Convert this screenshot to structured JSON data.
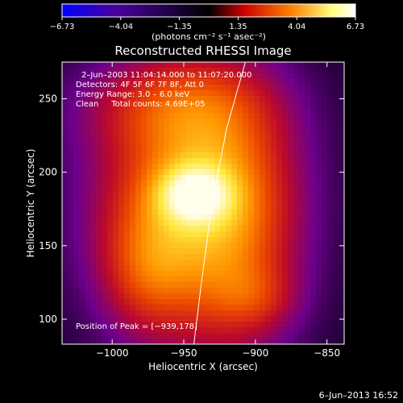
{
  "chart_data": {
    "type": "heatmap",
    "title": "Reconstructed RHESSI Image",
    "xlabel": "Heliocentric X (arcsec)",
    "ylabel": "Heliocentric Y (arcsec)",
    "xlim": [
      -1035,
      -838
    ],
    "ylim": [
      83,
      275
    ],
    "x_ticks": [
      {
        "value": -1000,
        "label": "−1000"
      },
      {
        "value": -950,
        "label": "−950"
      },
      {
        "value": -900,
        "label": "−900"
      },
      {
        "value": -850,
        "label": "−850"
      }
    ],
    "y_ticks": [
      {
        "value": 100,
        "label": "100"
      },
      {
        "value": 150,
        "label": "150"
      },
      {
        "value": 200,
        "label": "200"
      },
      {
        "value": 250,
        "label": "250"
      }
    ],
    "colorbar": {
      "range": [
        -6.73,
        6.73
      ],
      "ticks": [
        {
          "value": -6.73,
          "label": "−6.73"
        },
        {
          "value": -4.04,
          "label": "−4.04"
        },
        {
          "value": -1.35,
          "label": "−1.35"
        },
        {
          "value": 1.35,
          "label": "1.35"
        },
        {
          "value": 4.04,
          "label": "4.04"
        },
        {
          "value": 6.73,
          "label": "6.73"
        }
      ],
      "unit_label": "(photons cm⁻² s⁻¹ asec⁻²)",
      "colors": [
        "#0000ff",
        "#4a00a0",
        "#000000",
        "#cc0000",
        "#ff8000",
        "#ffff80",
        "#ffffff"
      ]
    },
    "annotations": [
      "2–Jun–2003 11:04:14.000 to 11:07:20.000",
      "Detectors: 4F 5F 6F 7F 8F, Att 0",
      "Energy Range: 3.0 – 6.0 keV",
      "Clean     Total counts: 4.69E+05"
    ],
    "peak_label": "Position of Peak = [−939,178]",
    "peak": {
      "x": -939,
      "y": 178
    },
    "limb_line": [
      {
        "x": -943,
        "y": 83
      },
      {
        "x": -937,
        "y": 130
      },
      {
        "x": -930,
        "y": 180
      },
      {
        "x": -920,
        "y": 230
      },
      {
        "x": -907,
        "y": 275
      }
    ],
    "blobs": [
      {
        "x": -945,
        "y": 183,
        "sx": 45,
        "sy": 60,
        "amp": 0.55
      },
      {
        "x": -943,
        "y": 185,
        "sx": 18,
        "sy": 14,
        "amp": 0.45
      },
      {
        "x": -975,
        "y": 135,
        "sx": 22,
        "sy": 30,
        "amp": 0.25
      },
      {
        "x": -915,
        "y": 160,
        "sx": 30,
        "sy": 60,
        "amp": 0.25
      },
      {
        "x": -955,
        "y": 245,
        "sx": 45,
        "sy": 22,
        "amp": 0.22
      },
      {
        "x": -900,
        "y": 115,
        "sx": 20,
        "sy": 15,
        "amp": 0.15
      }
    ],
    "footer": "6–Jun–2013 16:52"
  }
}
